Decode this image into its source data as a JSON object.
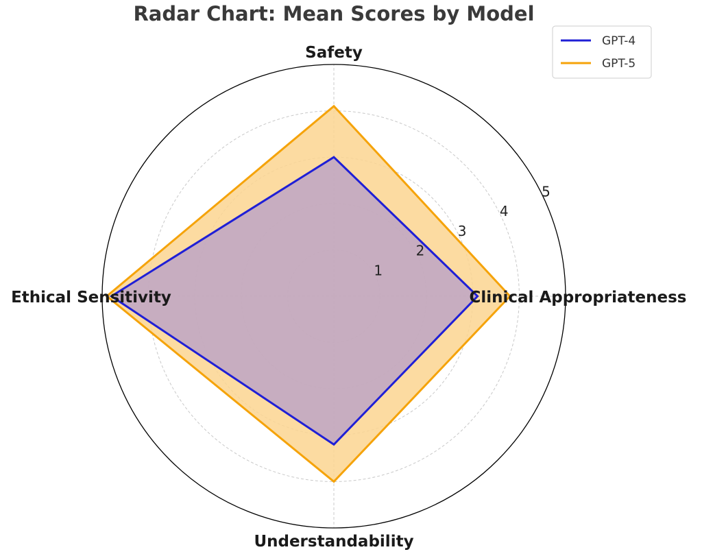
{
  "chart_data": {
    "type": "radar",
    "title": "Radar Chart: Mean Scores by Model",
    "axes": [
      "Safety",
      "Clinical Appropriateness",
      "Understandability",
      "Ethical Sensitivity"
    ],
    "r_ticks": [
      "1",
      "2",
      "3",
      "4",
      "5"
    ],
    "r_range": [
      0,
      5
    ],
    "grid": true,
    "legend_position": "top-right",
    "series": [
      {
        "name": "GPT-4",
        "values": [
          3.0,
          3.1,
          3.2,
          4.8
        ],
        "color": "#1f1fd6",
        "fill": "#b09acd"
      },
      {
        "name": "GPT-5",
        "values": [
          4.1,
          3.8,
          4.0,
          4.9
        ],
        "color": "#f5a30a",
        "fill": "#fcd590"
      }
    ]
  }
}
